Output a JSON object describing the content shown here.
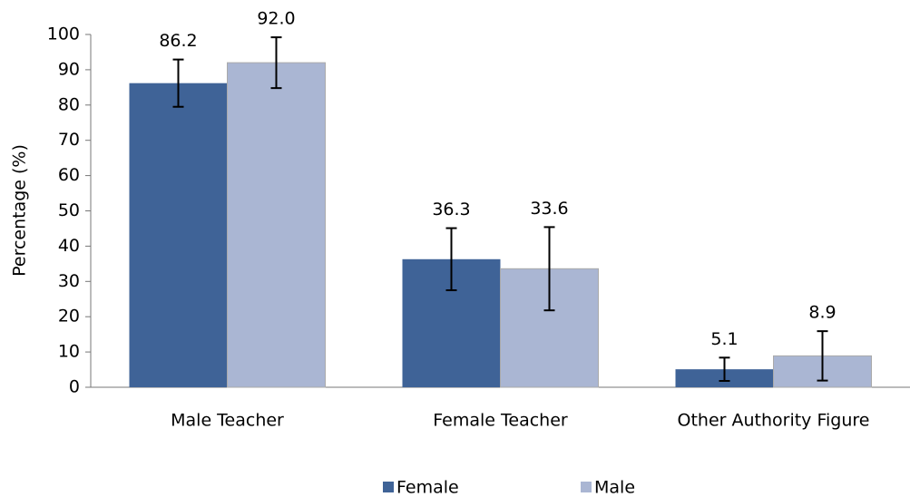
{
  "chart_data": {
    "type": "bar",
    "y_label": "Percentage (%)",
    "categories": [
      "Male Teacher",
      "Female Teacher",
      "Other Authority Figure"
    ],
    "series": [
      {
        "name": "Female",
        "color": "#3f6397",
        "values": [
          86.2,
          36.3,
          5.1
        ],
        "value_labels": [
          "86.2",
          "36.3",
          "5.1"
        ],
        "errors": [
          6.7,
          8.8,
          3.3
        ]
      },
      {
        "name": "Male",
        "color": "#aab6d3",
        "values": [
          92.0,
          33.6,
          8.9
        ],
        "value_labels": [
          "92.0",
          "33.6",
          "8.9"
        ],
        "errors": [
          7.2,
          11.8,
          7.0
        ]
      }
    ],
    "ylim": [
      0,
      100
    ],
    "yticks": [
      0,
      10,
      20,
      30,
      40,
      50,
      60,
      70,
      80,
      90,
      100
    ],
    "grid": false,
    "legend": "bottom"
  }
}
